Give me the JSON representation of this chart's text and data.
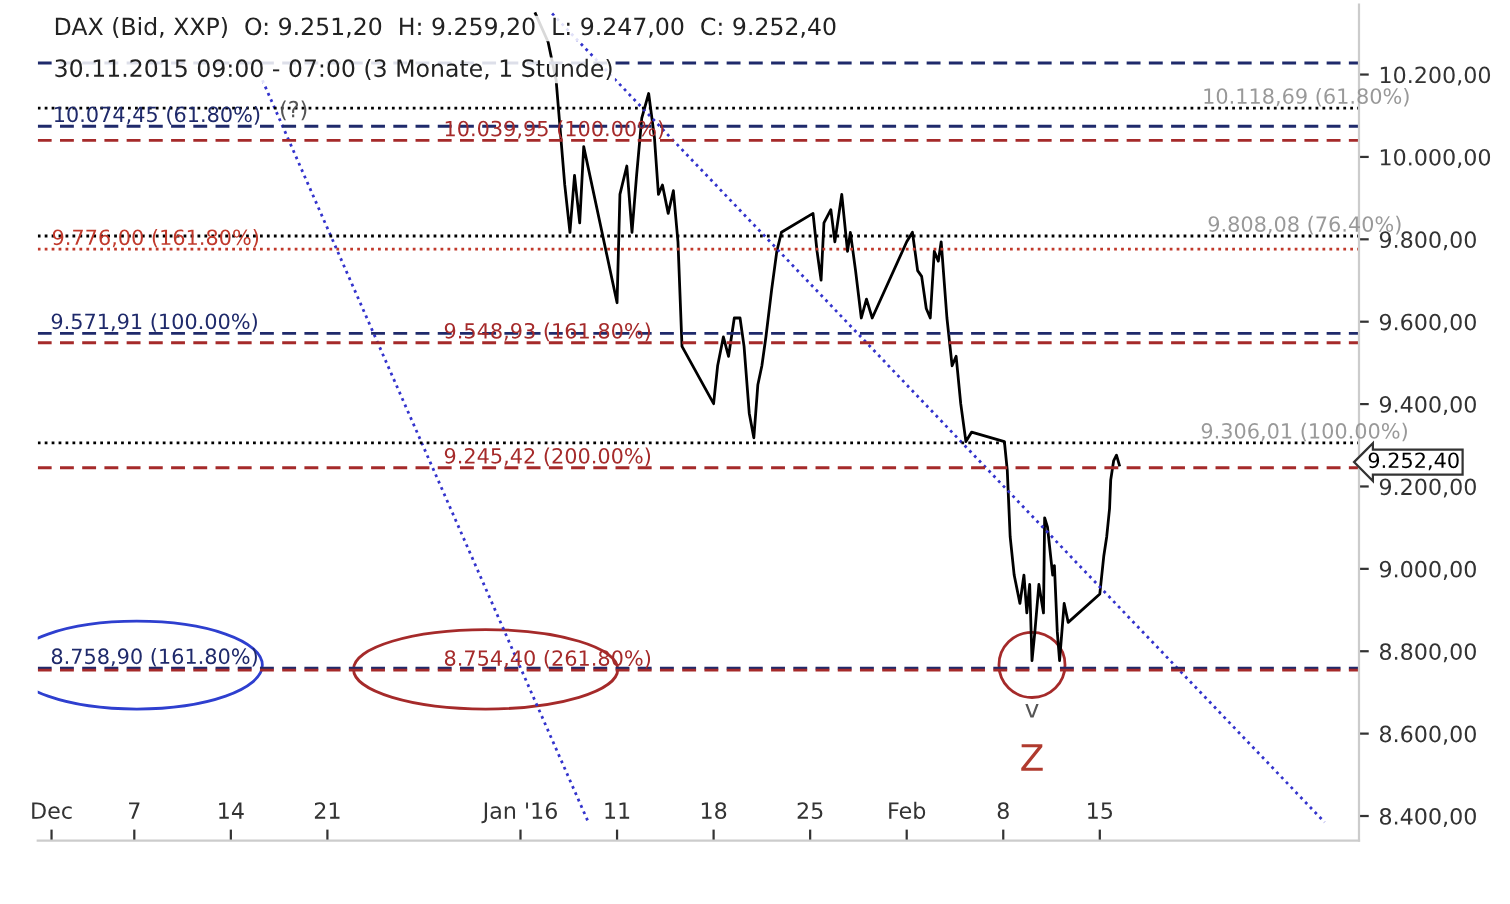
{
  "chart_data": {
    "type": "line",
    "annotations": [
      "DAX (Bid, XXP)  O: 9.251,20  H: 9.259,20  L: 9.247,00  C: 9.252,40",
      "30.11.2015 09:00 - 07:00 (3 Monate, 1 Stunde)",
      {
        "text": "10.118,69 (61.80%)",
        "x": "2016-02-22T10:00",
        "y": 10118.69
      },
      {
        "text": "10.074,45 (61.80%)",
        "x": "2015-12-01T02:00",
        "y": 10074.45
      },
      {
        "text": "10.039,95 (100.00%)",
        "x": "2015-12-29T10:00",
        "y": 10039.95
      },
      {
        "text": "9.808,08 (76.40%)",
        "x": "2016-02-22T19:00",
        "y": 9808.08
      },
      {
        "text": "9.776,00 (161.80%)",
        "x": "2015-12-01T00:00",
        "y": 9776.0
      },
      {
        "text": "9.571,91 (100.00%)",
        "x": "2015-11-30T22:00",
        "y": 9571.91
      },
      {
        "text": "9.548,93 (161.80%)",
        "x": "2015-12-29T10:00",
        "y": 9548.93
      },
      {
        "text": "9.306,01 (100.00%)",
        "x": "2016-02-22T07:00",
        "y": 9306.01
      },
      {
        "text": "9.245,42 (200.00%)",
        "x": "2015-12-29T10:00",
        "y": 9245.42
      },
      {
        "text": "8.758,90 (161.80%)",
        "x": "2015-11-30T22:00",
        "y": 8758.9
      },
      {
        "text": "8.754,40 (261.80%)",
        "x": "2015-12-29T10:00",
        "y": 8754.4
      },
      {
        "text": "9.252,40",
        "x": "2016-03-04T19:00",
        "y": 9252.4
      },
      {
        "text": "v",
        "x": "2016-02-10T02:00",
        "y": 8777
      },
      {
        "text": "Z",
        "x": "2016-02-10T02:00",
        "y": 8777
      },
      {
        "text": "(?)",
        "x": "2015-12-17T12:00",
        "y": 10085
      }
    ],
    "series": [
      {
        "color": "#000000",
        "line_style": "solid",
        "x": [
          "2016-01-05T02:00",
          "2016-01-06T00:00",
          "2016-01-06T14:00",
          "2016-01-07T05:00",
          "2016-01-07T14:00",
          "2016-01-07T22:00",
          "2016-01-08T07:00",
          "2016-01-08T14:00",
          "2016-01-11T00:00",
          "2016-01-11T05:00",
          "2016-01-11T17:00",
          "2016-01-12T02:00",
          "2016-01-12T10:00",
          "2016-01-12T19:00",
          "2016-01-13T07:00",
          "2016-01-13T17:00",
          "2016-01-14T00:00",
          "2016-01-14T07:00",
          "2016-01-14T17:00",
          "2016-01-15T02:00",
          "2016-01-15T10:00",
          "2016-01-15T17:00",
          "2016-01-18T00:00",
          "2016-01-18T07:00",
          "2016-01-18T17:00",
          "2016-01-19T02:00",
          "2016-01-19T12:00",
          "2016-01-19T22:00",
          "2016-01-20T05:00",
          "2016-01-20T14:00",
          "2016-01-20T22:00",
          "2016-01-21T05:00",
          "2016-01-21T12:00",
          "2016-01-21T19:00",
          "2016-01-22T05:00",
          "2016-01-22T14:00",
          "2016-01-22T22:00",
          "2016-01-25T05:00",
          "2016-01-25T12:00",
          "2016-01-25T19:00",
          "2016-01-26T00:00",
          "2016-01-26T12:00",
          "2016-01-26T19:00",
          "2016-01-27T07:00",
          "2016-01-27T17:00",
          "2016-01-27T22:00",
          "2016-01-28T07:00",
          "2016-01-28T17:00",
          "2016-01-29T02:00",
          "2016-01-29T12:00",
          "2016-02-01T00:00",
          "2016-02-01T10:00",
          "2016-02-01T19:00",
          "2016-02-02T02:00",
          "2016-02-02T10:00",
          "2016-02-02T17:00",
          "2016-02-03T00:00",
          "2016-02-03T07:00",
          "2016-02-03T12:00",
          "2016-02-03T22:00",
          "2016-02-04T07:00",
          "2016-02-04T14:00",
          "2016-02-04T22:00",
          "2016-02-05T07:00",
          "2016-02-05T17:00",
          "2016-02-08T02:00",
          "2016-02-08T07:00",
          "2016-02-08T12:00",
          "2016-02-08T19:00",
          "2016-02-09T05:00",
          "2016-02-09T12:00",
          "2016-02-09T17:00",
          "2016-02-09T22:00",
          "2016-02-10T02:00",
          "2016-02-10T07:00",
          "2016-02-10T14:00",
          "2016-02-10T22:00",
          "2016-02-11T00:00",
          "2016-02-11T05:00",
          "2016-02-11T14:00",
          "2016-02-11T17:00",
          "2016-02-11T22:00",
          "2016-02-12T02:00",
          "2016-02-12T10:00",
          "2016-02-12T17:00",
          "2016-02-15T00:00",
          "2016-02-15T07:00",
          "2016-02-15T12:00",
          "2016-02-15T17:00",
          "2016-02-15T19:00",
          "2016-02-16T00:00",
          "2016-02-16T05:00",
          "2016-02-16T10:00"
        ],
        "values": [
          10348,
          10279,
          10186,
          9932,
          9817,
          9955,
          9840,
          10025,
          9646,
          9909,
          9978,
          9817,
          9955,
          10094,
          10154,
          10048,
          9909,
          9932,
          9863,
          9918,
          9794,
          9540,
          9401,
          9493,
          9563,
          9516,
          9609,
          9609,
          9540,
          9378,
          9318,
          9447,
          9493,
          9563,
          9678,
          9771,
          9817,
          9863,
          9771,
          9701,
          9840,
          9872,
          9794,
          9909,
          9771,
          9817,
          9724,
          9609,
          9655,
          9609,
          9794,
          9817,
          9724,
          9710,
          9632,
          9609,
          9771,
          9747,
          9794,
          9609,
          9493,
          9516,
          9401,
          9309,
          9332,
          9309,
          9239,
          9078,
          8985,
          8916,
          8985,
          8893,
          8962,
          8777,
          8847,
          8962,
          8893,
          9124,
          9101,
          8985,
          9008,
          8847,
          8777,
          8916,
          8870,
          8939,
          9032,
          9078,
          9147,
          9216,
          9262,
          9276,
          9252
        ]
      },
      {
        "color": "#3333cc",
        "line_style": "dotted",
        "x": [
          "2016-01-06T07:00",
          "2016-03-02T07:00"
        ],
        "values": [
          10348,
          8385
        ]
      },
      {
        "color": "#3333cc",
        "line_style": "dotted",
        "x": [
          "2015-12-16T07:00",
          "2016-01-08T22:00"
        ],
        "values": [
          10186,
          8385
        ]
      }
    ],
    "ref_lines": [
      {
        "axis": "y",
        "value": 10228,
        "color": "#1f2a6b",
        "line_style": "dashed"
      },
      {
        "axis": "y",
        "value": 10118.69,
        "color": "#000000",
        "line_style": "dotted"
      },
      {
        "axis": "y",
        "value": 10074.45,
        "color": "#1f2a6b",
        "line_style": "dashed"
      },
      {
        "axis": "y",
        "value": 10039.95,
        "color": "#a52a2a",
        "line_style": "dashed"
      },
      {
        "axis": "y",
        "value": 9808.08,
        "color": "#000000",
        "line_style": "dotted"
      },
      {
        "axis": "y",
        "value": 9776.0,
        "color": "#c0392b",
        "line_style": "dotted"
      },
      {
        "axis": "y",
        "value": 9571.91,
        "color": "#1f2a6b",
        "line_style": "dashed"
      },
      {
        "axis": "y",
        "value": 9548.93,
        "color": "#a52a2a",
        "line_style": "dashed"
      },
      {
        "axis": "y",
        "value": 9306.01,
        "color": "#000000",
        "line_style": "dotted"
      },
      {
        "axis": "y",
        "value": 9245.42,
        "color": "#a52a2a",
        "line_style": "dashed"
      },
      {
        "axis": "y",
        "value": 8758.9,
        "color": "#1f2a6b",
        "line_style": "dashed"
      },
      {
        "axis": "y",
        "value": 8754.4,
        "color": "#a52a2a",
        "line_style": "dashed"
      }
    ],
    "xlim": [
      "2015-11-30T00:00",
      "2016-03-04T19:00"
    ],
    "xticks": [
      {
        "value": "2015-12-01",
        "label": "Dec"
      },
      {
        "value": "2015-12-07",
        "label": "7"
      },
      {
        "value": "2015-12-14",
        "label": "14"
      },
      {
        "value": "2015-12-21",
        "label": "21"
      },
      {
        "value": "2016-01-04",
        "label": "Jan '16"
      },
      {
        "value": "2016-01-11",
        "label": "11"
      },
      {
        "value": "2016-01-18",
        "label": "18"
      },
      {
        "value": "2016-01-25",
        "label": "25"
      },
      {
        "value": "2016-02-01",
        "label": "Feb"
      },
      {
        "value": "2016-02-08",
        "label": "8"
      },
      {
        "value": "2016-02-15",
        "label": "15"
      }
    ],
    "ylim": [
      8340,
      10370
    ],
    "yticks": [
      {
        "value": 8400,
        "label": "8.400,00"
      },
      {
        "value": 8600,
        "label": "8.600,00"
      },
      {
        "value": 8800,
        "label": "8.800,00"
      },
      {
        "value": 9000,
        "label": "9.000,00"
      },
      {
        "value": 9200,
        "label": "9.200,00"
      },
      {
        "value": 9400,
        "label": "9.400,00"
      },
      {
        "value": 9600,
        "label": "9.600,00"
      },
      {
        "value": 9800,
        "label": "9.800,00"
      },
      {
        "value": 10000,
        "label": "10.000,00"
      },
      {
        "value": 10200,
        "label": "10.200,00"
      }
    ],
    "grid": false,
    "legend": false
  }
}
